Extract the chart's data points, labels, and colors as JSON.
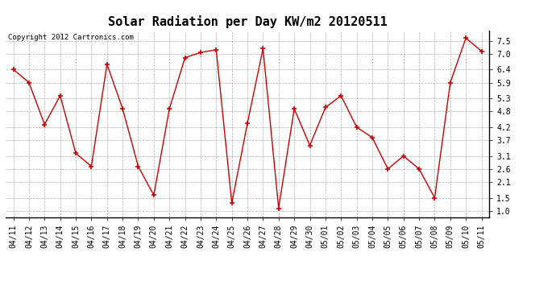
{
  "title": "Solar Radiation per Day KW/m2 20120511",
  "copyright_text": "Copyright 2012 Cartronics.com",
  "dates": [
    "04/11",
    "04/12",
    "04/13",
    "04/14",
    "04/15",
    "04/16",
    "04/17",
    "04/18",
    "04/19",
    "04/20",
    "04/21",
    "04/22",
    "04/23",
    "04/24",
    "04/25",
    "04/26",
    "04/27",
    "04/28",
    "04/29",
    "04/30",
    "05/01",
    "05/02",
    "05/03",
    "05/04",
    "05/05",
    "05/06",
    "05/07",
    "05/08",
    "05/09",
    "05/10",
    "05/11"
  ],
  "values": [
    6.4,
    5.9,
    4.3,
    5.4,
    3.2,
    2.7,
    6.6,
    4.9,
    2.7,
    1.6,
    4.9,
    6.85,
    7.05,
    7.15,
    1.3,
    4.35,
    7.2,
    1.1,
    4.9,
    3.5,
    4.95,
    5.4,
    4.2,
    3.8,
    2.6,
    3.1,
    2.6,
    1.5,
    5.9,
    7.6,
    7.1
  ],
  "line_color": "#cc0000",
  "marker_color": "#cc0000",
  "bg_color": "#ffffff",
  "grid_color": "#999999",
  "title_fontsize": 11,
  "copyright_fontsize": 6.5,
  "tick_fontsize": 7,
  "yticks": [
    1.0,
    1.5,
    2.1,
    2.6,
    3.1,
    3.7,
    4.2,
    4.8,
    5.3,
    5.9,
    6.4,
    7.0,
    7.5
  ],
  "ylim": [
    0.75,
    7.9
  ],
  "xlim": [
    -0.5,
    30.5
  ]
}
